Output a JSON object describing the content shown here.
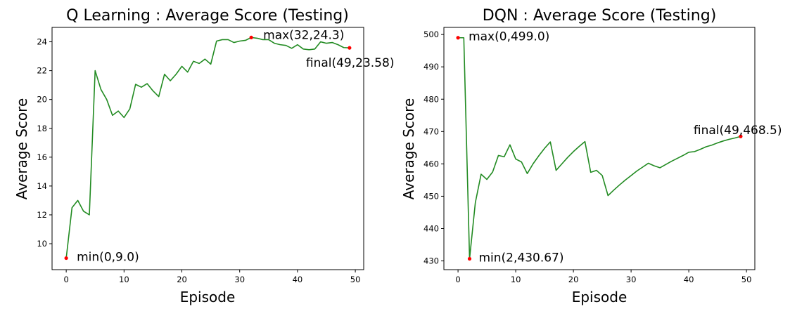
{
  "chart_data": [
    {
      "type": "line",
      "title": "Q Learning : Average Score (Testing)",
      "xlabel": "Episode",
      "ylabel": "Average Score",
      "xlim": [
        -2.45,
        51.45
      ],
      "ylim": [
        8.2,
        25.0
      ],
      "xticks": [
        0,
        10,
        20,
        30,
        40,
        50
      ],
      "yticks": [
        10,
        12,
        14,
        16,
        18,
        20,
        22,
        24
      ],
      "grid": false,
      "line_color": "#228b22",
      "marker_color": "#ff0000",
      "x": [
        0,
        1,
        2,
        3,
        4,
        5,
        6,
        7,
        8,
        9,
        10,
        11,
        12,
        13,
        14,
        15,
        16,
        17,
        18,
        19,
        20,
        21,
        22,
        23,
        24,
        25,
        26,
        27,
        28,
        29,
        30,
        31,
        32,
        33,
        34,
        35,
        36,
        37,
        38,
        39,
        40,
        41,
        42,
        43,
        44,
        45,
        46,
        47,
        48,
        49
      ],
      "y": [
        9.0,
        12.5,
        13.0,
        12.25,
        12.0,
        22.0,
        20.7,
        20.0,
        18.9,
        19.2,
        18.75,
        19.35,
        21.05,
        20.85,
        21.1,
        20.6,
        20.2,
        21.75,
        21.3,
        21.75,
        22.3,
        21.9,
        22.65,
        22.5,
        22.8,
        22.45,
        24.05,
        24.15,
        24.15,
        23.95,
        24.05,
        24.1,
        24.3,
        24.25,
        24.15,
        24.15,
        23.9,
        23.8,
        23.75,
        23.55,
        23.8,
        23.5,
        23.45,
        23.5,
        24.0,
        23.9,
        23.95,
        23.8,
        23.6,
        23.58
      ],
      "annotations": [
        {
          "label": "min(0,9.0)",
          "x": 0,
          "y": 9.0
        },
        {
          "label": "max(32,24.3)",
          "x": 32,
          "y": 24.3
        },
        {
          "label": "final(49,23.58)",
          "x": 49,
          "y": 23.58
        }
      ]
    },
    {
      "type": "line",
      "title": "DQN : Average Score (Testing)",
      "xlabel": "Episode",
      "ylabel": "Average Score",
      "xlim": [
        -2.45,
        51.45
      ],
      "ylim": [
        427.3,
        502.2
      ],
      "xticks": [
        0,
        10,
        20,
        30,
        40,
        50
      ],
      "yticks": [
        430,
        440,
        450,
        460,
        470,
        480,
        490,
        500
      ],
      "grid": false,
      "line_color": "#228b22",
      "marker_color": "#ff0000",
      "x": [
        0,
        1,
        2,
        3,
        4,
        5,
        6,
        7,
        8,
        9,
        10,
        11,
        12,
        13,
        14,
        15,
        16,
        17,
        18,
        19,
        20,
        21,
        22,
        23,
        24,
        25,
        26,
        27,
        28,
        29,
        30,
        31,
        32,
        33,
        34,
        35,
        36,
        37,
        38,
        39,
        40,
        41,
        42,
        43,
        44,
        45,
        46,
        47,
        48,
        49
      ],
      "y": [
        499.0,
        499.0,
        430.67,
        448.0,
        456.8,
        455.2,
        457.5,
        462.6,
        462.2,
        465.9,
        461.5,
        460.6,
        457.0,
        460.0,
        462.5,
        464.8,
        466.8,
        458.0,
        460.0,
        462.0,
        463.8,
        465.4,
        466.9,
        457.4,
        458.0,
        456.4,
        450.2,
        451.9,
        453.5,
        455.0,
        456.4,
        457.8,
        459.0,
        460.2,
        459.4,
        458.8,
        459.8,
        460.8,
        461.7,
        462.6,
        463.6,
        463.8,
        464.5,
        465.3,
        465.8,
        466.5,
        467.1,
        467.6,
        468.0,
        468.5
      ],
      "annotations": [
        {
          "label": "max(0,499.0)",
          "x": 0,
          "y": 499.0
        },
        {
          "label": "min(2,430.67)",
          "x": 2,
          "y": 430.67
        },
        {
          "label": "final(49,468.5)",
          "x": 49,
          "y": 468.5
        }
      ]
    }
  ]
}
